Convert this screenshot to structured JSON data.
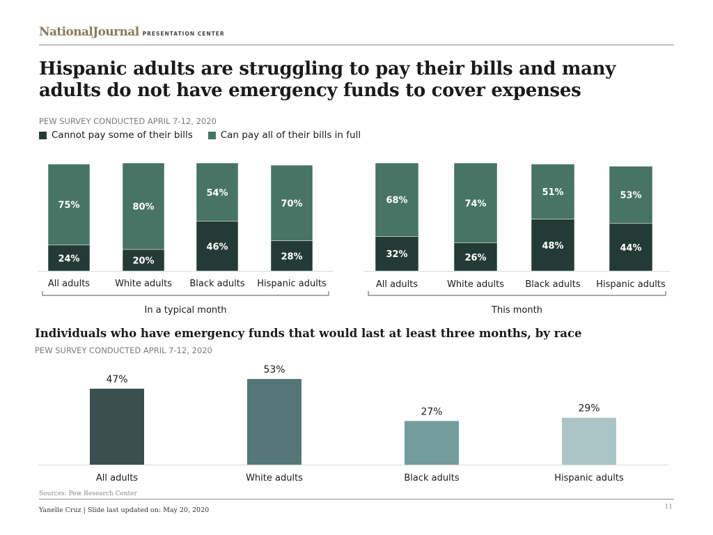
{
  "header": {
    "brand": "NationalJournal",
    "brand_sub": "PRESENTATION CENTER"
  },
  "title": "Hispanic adults are struggling to pay their bills and many adults do not have emergency funds to cover expenses",
  "survey_note_top": "PEW SURVEY CONDUCTED APRIL 7-12, 2020",
  "legend": [
    {
      "label": "Cannot pay some of their bills",
      "color": "#243b35"
    },
    {
      "label": "Can pay all of their bills in full",
      "color": "#477464"
    }
  ],
  "chart_data": [
    {
      "type": "bar",
      "stacked": true,
      "group_label": "In a typical month",
      "categories": [
        "All adults",
        "White adults",
        "Black adults",
        "Hispanic adults"
      ],
      "series": [
        {
          "name": "Cannot pay some of their bills",
          "values": [
            24,
            20,
            46,
            28
          ],
          "labels": [
            "24%",
            "20%",
            "46%",
            "28%"
          ],
          "color": "#243b35"
        },
        {
          "name": "Can pay all of their bills in full",
          "values": [
            75,
            80,
            54,
            70
          ],
          "labels": [
            "75%",
            "80%",
            "54%",
            "70%"
          ],
          "color": "#477464"
        }
      ],
      "ylim": [
        0,
        100
      ]
    },
    {
      "type": "bar",
      "stacked": true,
      "group_label": "This month",
      "categories": [
        "All adults",
        "White adults",
        "Black adults",
        "Hispanic adults"
      ],
      "series": [
        {
          "name": "Cannot pay some of their bills",
          "values": [
            32,
            26,
            48,
            44
          ],
          "labels": [
            "32%",
            "26%",
            "48%",
            "44%"
          ],
          "color": "#243b35"
        },
        {
          "name": "Can pay all of their bills in full",
          "values": [
            68,
            74,
            51,
            53
          ],
          "labels": [
            "68%",
            "74%",
            "51%",
            "53%"
          ],
          "color": "#477464"
        }
      ],
      "ylim": [
        0,
        100
      ]
    },
    {
      "type": "bar",
      "title": "Individuals who have emergency funds that would last at least three months, by race",
      "note": "PEW SURVEY CONDUCTED APRIL 7-12, 2020",
      "categories": [
        "All adults",
        "White adults",
        "Black adults",
        "Hispanic adults"
      ],
      "values": [
        47,
        53,
        27,
        29
      ],
      "labels": [
        "47%",
        "53%",
        "27%",
        "29%"
      ],
      "colors": [
        "#3a4f50",
        "#557777",
        "#729d9b",
        "#abc5c7"
      ],
      "ylim": [
        0,
        100
      ]
    }
  ],
  "footer": {
    "sources": "Sources: Pew Research Center",
    "credit": "Yanelle Cruz | Slide last updated on: May 20, 2020",
    "page": "11"
  }
}
